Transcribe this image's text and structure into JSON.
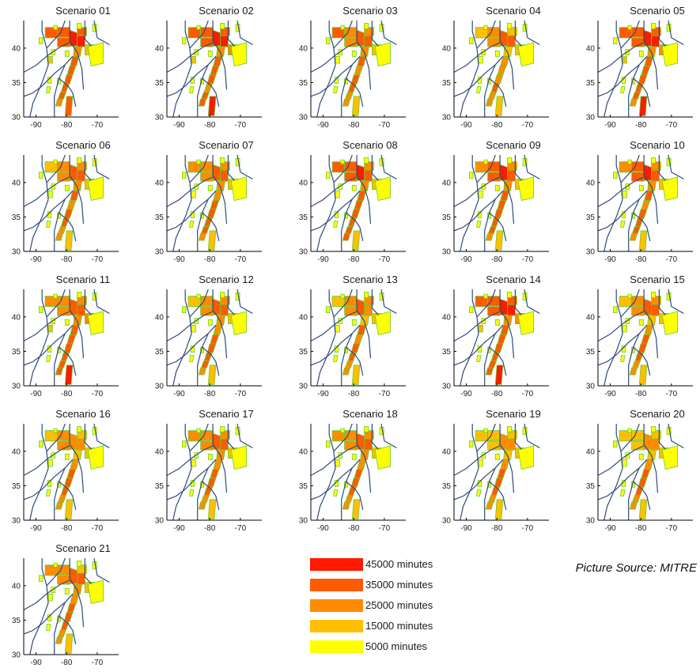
{
  "panels": [
    {
      "title": "Scenario 01",
      "levels": [
        4,
        4,
        4,
        5,
        4,
        5,
        3,
        4,
        4,
        4,
        4,
        4,
        3,
        2,
        4,
        1,
        2
      ]
    },
    {
      "title": "Scenario 02",
      "levels": [
        4,
        4,
        4,
        5,
        4,
        5,
        3,
        4,
        4,
        4,
        3,
        4,
        4,
        3,
        5,
        1,
        2
      ]
    },
    {
      "title": "Scenario 03",
      "levels": [
        4,
        3,
        3,
        4,
        3,
        4,
        3,
        4,
        3,
        4,
        4,
        3,
        3,
        2,
        2,
        1,
        1
      ]
    },
    {
      "title": "Scenario 04",
      "levels": [
        2,
        3,
        3,
        4,
        2,
        4,
        2,
        3,
        3,
        3,
        4,
        3,
        3,
        2,
        2,
        1,
        1
      ]
    },
    {
      "title": "Scenario 05",
      "levels": [
        4,
        4,
        4,
        5,
        4,
        5,
        3,
        4,
        4,
        4,
        4,
        4,
        3,
        3,
        5,
        1,
        2
      ]
    },
    {
      "title": "Scenario 06",
      "levels": [
        2,
        3,
        3,
        4,
        3,
        4,
        3,
        4,
        3,
        4,
        4,
        3,
        3,
        2,
        2,
        1,
        1
      ]
    },
    {
      "title": "Scenario 07",
      "levels": [
        3,
        3,
        3,
        4,
        3,
        4,
        3,
        3,
        4,
        4,
        4,
        4,
        3,
        2,
        2,
        1,
        1
      ]
    },
    {
      "title": "Scenario 08",
      "levels": [
        4,
        4,
        4,
        5,
        3,
        4,
        3,
        4,
        4,
        4,
        4,
        4,
        4,
        2,
        2,
        1,
        1
      ]
    },
    {
      "title": "Scenario 09",
      "levels": [
        3,
        4,
        4,
        5,
        3,
        4,
        3,
        4,
        4,
        4,
        4,
        4,
        3,
        2,
        2,
        1,
        1
      ]
    },
    {
      "title": "Scenario 10",
      "levels": [
        3,
        4,
        4,
        5,
        3,
        4,
        3,
        4,
        3,
        4,
        4,
        4,
        3,
        2,
        2,
        1,
        1
      ]
    },
    {
      "title": "Scenario 11",
      "levels": [
        3,
        3,
        3,
        4,
        3,
        4,
        3,
        4,
        4,
        4,
        4,
        4,
        4,
        3,
        5,
        1,
        2
      ]
    },
    {
      "title": "Scenario 12",
      "levels": [
        2,
        3,
        3,
        4,
        3,
        4,
        3,
        3,
        4,
        4,
        4,
        4,
        3,
        2,
        2,
        1,
        1
      ]
    },
    {
      "title": "Scenario 13",
      "levels": [
        2,
        3,
        3,
        4,
        3,
        3,
        2,
        4,
        3,
        4,
        4,
        3,
        3,
        2,
        2,
        1,
        1
      ]
    },
    {
      "title": "Scenario 14",
      "levels": [
        4,
        4,
        4,
        5,
        4,
        5,
        3,
        4,
        4,
        4,
        4,
        4,
        4,
        3,
        5,
        1,
        2
      ]
    },
    {
      "title": "Scenario 15",
      "levels": [
        2,
        3,
        3,
        4,
        3,
        4,
        2,
        3,
        4,
        4,
        4,
        3,
        3,
        2,
        2,
        1,
        1
      ]
    },
    {
      "title": "Scenario 16",
      "levels": [
        2,
        3,
        3,
        3,
        2,
        3,
        2,
        3,
        4,
        4,
        4,
        3,
        3,
        2,
        2,
        1,
        1
      ]
    },
    {
      "title": "Scenario 17",
      "levels": [
        3,
        3,
        3,
        4,
        3,
        4,
        3,
        3,
        4,
        4,
        4,
        3,
        3,
        2,
        2,
        1,
        1
      ]
    },
    {
      "title": "Scenario 18",
      "levels": [
        3,
        3,
        3,
        4,
        3,
        4,
        3,
        3,
        4,
        4,
        4,
        3,
        3,
        2,
        2,
        1,
        1
      ]
    },
    {
      "title": "Scenario 19",
      "levels": [
        2,
        2,
        2,
        3,
        2,
        3,
        2,
        3,
        4,
        4,
        4,
        3,
        3,
        2,
        2,
        1,
        1
      ]
    },
    {
      "title": "Scenario 20",
      "levels": [
        2,
        2,
        2,
        3,
        2,
        3,
        2,
        3,
        4,
        4,
        4,
        3,
        3,
        2,
        2,
        1,
        1
      ]
    },
    {
      "title": "Scenario 21",
      "levels": [
        3,
        3,
        3,
        4,
        2,
        4,
        3,
        3,
        4,
        4,
        4,
        3,
        3,
        2,
        2,
        1,
        1
      ]
    }
  ],
  "axes": {
    "x_ticks": [
      "-90",
      "-80",
      "-70"
    ],
    "y_ticks": [
      "30",
      "35",
      "40"
    ],
    "x_range": [
      -94,
      -63
    ],
    "y_range": [
      30,
      44
    ]
  },
  "legend": [
    {
      "label": "45000 minutes",
      "color": "#ff1a00"
    },
    {
      "label": "35000 minutes",
      "color": "#ff5a00"
    },
    {
      "label": "25000 minutes",
      "color": "#ff8c00"
    },
    {
      "label": "15000 minutes",
      "color": "#ffbf00"
    },
    {
      "label": "5000 minutes",
      "color": "#ffff00"
    }
  ],
  "source": "Picture Source: MITRE",
  "colors": {
    "boundary": "#2e4a7a",
    "sector_edge": "#66cc33",
    "frame": "#000000"
  }
}
